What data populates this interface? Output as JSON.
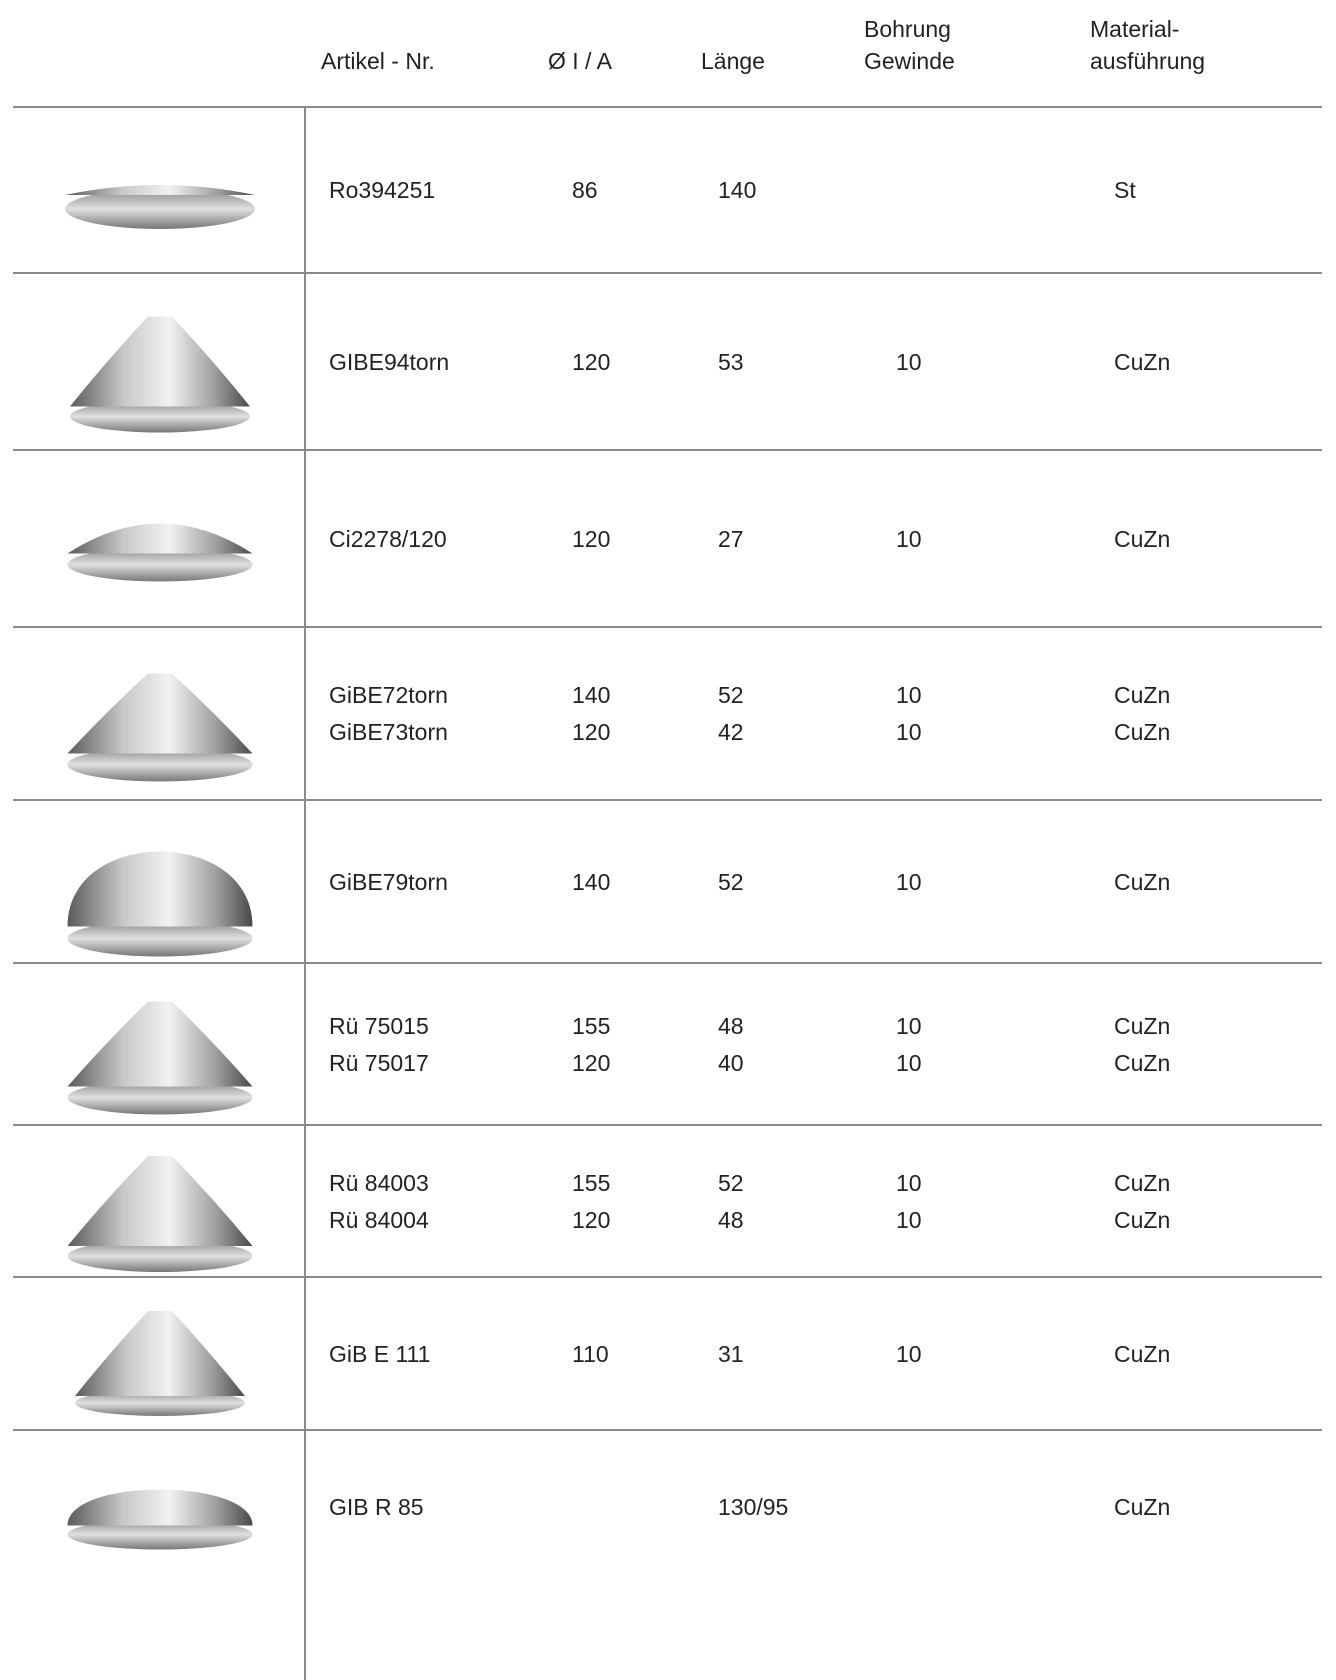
{
  "header": {
    "article": "Artikel - Nr.",
    "diameter": "Ø I / A",
    "length": "Länge",
    "bore": [
      "Bohrung",
      "Gewinde"
    ],
    "material": [
      "Material-",
      "ausführung"
    ]
  },
  "rows": [
    {
      "items": [
        {
          "article": "Ro394251",
          "diameter": "86",
          "length": "140",
          "material": "St"
        }
      ]
    },
    {
      "items": [
        {
          "article": "GIBE94torn",
          "diameter": "120",
          "length": "53",
          "bore": "10",
          "material": "CuZn"
        }
      ]
    },
    {
      "items": [
        {
          "article": "Ci2278/120",
          "diameter": "120",
          "length": "27",
          "bore": "10",
          "material": "CuZn"
        }
      ]
    },
    {
      "items": [
        {
          "article": "GiBE72torn",
          "diameter": "140",
          "length": "52",
          "bore": "10",
          "material": "CuZn"
        },
        {
          "article": "GiBE73torn",
          "diameter": "120",
          "length": "42",
          "bore": "10",
          "material": "CuZn"
        }
      ]
    },
    {
      "items": [
        {
          "article": "GiBE79torn",
          "diameter": "140",
          "length": "52",
          "bore": "10",
          "material": "CuZn"
        }
      ]
    },
    {
      "items": [
        {
          "article": "Rü 75015",
          "diameter": "155",
          "length": "48",
          "bore": "10",
          "material": "CuZn"
        },
        {
          "article": "Rü 75017",
          "diameter": "120",
          "length": "40",
          "bore": "10",
          "material": "CuZn"
        }
      ]
    },
    {
      "items": [
        {
          "article": "Rü 84003",
          "diameter": "155",
          "length": "52",
          "bore": "10",
          "material": "CuZn"
        },
        {
          "article": "Rü 84004",
          "diameter": "120",
          "length": "48",
          "bore": "10",
          "material": "CuZn"
        }
      ]
    },
    {
      "items": [
        {
          "article": "GiB E 111",
          "diameter": "110",
          "length": "31",
          "bore": "10",
          "material": "CuZn"
        }
      ]
    },
    {
      "items": [
        {
          "article": "GIB R 85",
          "length": "130/95",
          "material": "CuZn"
        }
      ]
    }
  ]
}
